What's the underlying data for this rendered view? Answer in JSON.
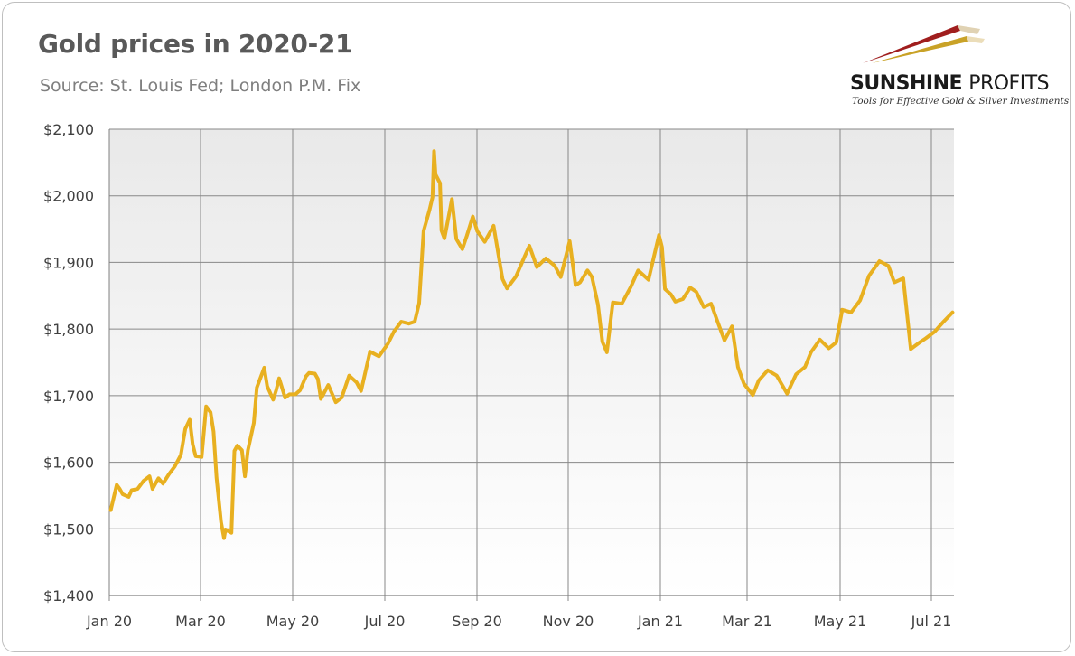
{
  "title": "Gold prices in 2020-21",
  "subtitle": "Source: St. Louis Fed; London P.M. Fix",
  "logo": {
    "word_main": "SUNSHINE",
    "word_second": "PROFITS",
    "tagline": "Tools for Effective Gold & Silver Investments"
  },
  "colors": {
    "line": "#E8B020",
    "grid": "#888888",
    "text": "#404040",
    "title": "#595959"
  },
  "chart_data": {
    "type": "line",
    "title": "Gold prices in 2020-21",
    "subtitle": "Source: St. Louis Fed; London P.M. Fix",
    "x_ticks": [
      "Jan 20",
      "Mar 20",
      "May 20",
      "Jul 20",
      "Sep 20",
      "Nov 20",
      "Jan 21",
      "Mar 21",
      "May 21",
      "Jul 21"
    ],
    "y_ticks": [
      "$1,400",
      "$1,500",
      "$1,600",
      "$1,700",
      "$1,800",
      "$1,900",
      "$2,000",
      "$2,100"
    ],
    "ylim": [
      1400,
      2100
    ],
    "xlim": [
      "2020-01-01",
      "2021-07-21"
    ],
    "grid": true,
    "legend": "none",
    "series": [
      {
        "name": "",
        "x": [
          "2020-01-02",
          "2020-01-06",
          "2020-01-08",
          "2020-01-10",
          "2020-01-14",
          "2020-01-16",
          "2020-01-20",
          "2020-01-24",
          "2020-01-28",
          "2020-01-30",
          "2020-02-03",
          "2020-02-06",
          "2020-02-10",
          "2020-02-14",
          "2020-02-18",
          "2020-02-21",
          "2020-02-24",
          "2020-02-26",
          "2020-02-28",
          "2020-03-03",
          "2020-03-06",
          "2020-03-09",
          "2020-03-11",
          "2020-03-13",
          "2020-03-16",
          "2020-03-18",
          "2020-03-19",
          "2020-03-23",
          "2020-03-25",
          "2020-03-27",
          "2020-03-30",
          "2020-04-01",
          "2020-04-03",
          "2020-04-07",
          "2020-04-09",
          "2020-04-14",
          "2020-04-16",
          "2020-04-20",
          "2020-04-22",
          "2020-04-24",
          "2020-04-28",
          "2020-05-01",
          "2020-05-05",
          "2020-05-08",
          "2020-05-12",
          "2020-05-14",
          "2020-05-18",
          "2020-05-20",
          "2020-05-22",
          "2020-05-27",
          "2020-06-01",
          "2020-06-05",
          "2020-06-10",
          "2020-06-15",
          "2020-06-18",
          "2020-06-24",
          "2020-06-30",
          "2020-07-06",
          "2020-07-10",
          "2020-07-15",
          "2020-07-20",
          "2020-07-24",
          "2020-07-27",
          "2020-07-30",
          "2020-08-03",
          "2020-08-05",
          "2020-08-06",
          "2020-08-07",
          "2020-08-10",
          "2020-08-11",
          "2020-08-13",
          "2020-08-18",
          "2020-08-21",
          "2020-08-25",
          "2020-08-28",
          "2020-09-01",
          "2020-09-04",
          "2020-09-09",
          "2020-09-15",
          "2020-09-21",
          "2020-09-24",
          "2020-09-30",
          "2020-10-06",
          "2020-10-09",
          "2020-10-14",
          "2020-10-20",
          "2020-10-26",
          "2020-10-30",
          "2020-11-05",
          "2020-11-09",
          "2020-11-12",
          "2020-11-17",
          "2020-11-20",
          "2020-11-24",
          "2020-11-27",
          "2020-11-30",
          "2020-12-04",
          "2020-12-10",
          "2020-12-16",
          "2020-12-21",
          "2020-12-28",
          "2021-01-04",
          "2021-01-06",
          "2021-01-08",
          "2021-01-12",
          "2021-01-15",
          "2021-01-20",
          "2021-01-25",
          "2021-01-29",
          "2021-02-03",
          "2021-02-08",
          "2021-02-12",
          "2021-02-17",
          "2021-02-22",
          "2021-02-26",
          "2021-03-02",
          "2021-03-08",
          "2021-03-12",
          "2021-03-18",
          "2021-03-24",
          "2021-03-31",
          "2021-04-06",
          "2021-04-12",
          "2021-04-16",
          "2021-04-22",
          "2021-04-28",
          "2021-05-03",
          "2021-05-07",
          "2021-05-13",
          "2021-05-19",
          "2021-05-25",
          "2021-06-01",
          "2021-06-07",
          "2021-06-11",
          "2021-06-17",
          "2021-06-22",
          "2021-06-28",
          "2021-07-02",
          "2021-07-08",
          "2021-07-14",
          "2021-07-20"
        ],
        "y": [
          1528,
          1566,
          1560,
          1552,
          1548,
          1558,
          1560,
          1572,
          1579,
          1560,
          1576,
          1568,
          1582,
          1594,
          1611,
          1650,
          1664,
          1627,
          1609,
          1608,
          1684,
          1675,
          1646,
          1577,
          1510,
          1486,
          1499,
          1494,
          1617,
          1625,
          1618,
          1579,
          1618,
          1659,
          1712,
          1742,
          1714,
          1694,
          1708,
          1726,
          1697,
          1702,
          1702,
          1708,
          1729,
          1734,
          1733,
          1725,
          1695,
          1716,
          1690,
          1697,
          1730,
          1720,
          1707,
          1766,
          1759,
          1778,
          1796,
          1811,
          1808,
          1811,
          1839,
          1947,
          1979,
          1998,
          2067,
          2032,
          2019,
          1948,
          1936,
          1995,
          1935,
          1920,
          1940,
          1969,
          1947,
          1931,
          1955,
          1875,
          1861,
          1879,
          1910,
          1925,
          1893,
          1906,
          1895,
          1878,
          1932,
          1866,
          1870,
          1888,
          1878,
          1837,
          1781,
          1765,
          1840,
          1838,
          1863,
          1888,
          1874,
          1941,
          1923,
          1860,
          1852,
          1841,
          1845,
          1862,
          1856,
          1833,
          1838,
          1813,
          1783,
          1804,
          1743,
          1718,
          1701,
          1723,
          1738,
          1730,
          1703,
          1732,
          1743,
          1765,
          1784,
          1771,
          1780,
          1829,
          1825,
          1843,
          1880,
          1902,
          1895,
          1870,
          1876,
          1770,
          1780,
          1786,
          1796,
          1811,
          1825
        ]
      }
    ]
  }
}
